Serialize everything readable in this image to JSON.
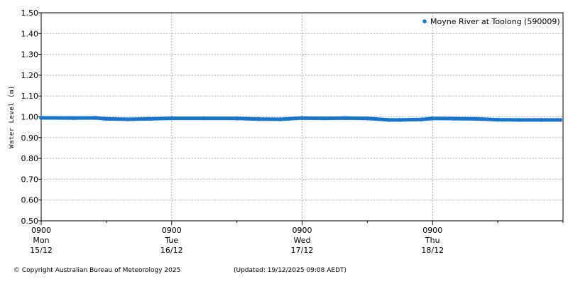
{
  "chart_data": {
    "type": "scatter",
    "title": "",
    "ylabel": "Water Level (m)",
    "xlabel": "",
    "ylim": [
      0.5,
      1.5
    ],
    "yticks": [
      0.5,
      0.6,
      0.7,
      0.8,
      0.9,
      1.0,
      1.1,
      1.2,
      1.3,
      1.4,
      1.5
    ],
    "ytick_labels": [
      "0.50",
      "0.60",
      "0.70",
      "0.80",
      "0.90",
      "1.00",
      "1.10",
      "1.20",
      "1.30",
      "1.40",
      "1.50"
    ],
    "x_range_hours": [
      0,
      96
    ],
    "x_major_ticks": [
      {
        "hour": 0,
        "time": "0900",
        "day": "Mon",
        "date": "15/12"
      },
      {
        "hour": 24,
        "time": "0900",
        "day": "Tue",
        "date": "16/12"
      },
      {
        "hour": 48,
        "time": "0900",
        "day": "Wed",
        "date": "17/12"
      },
      {
        "hour": 72,
        "time": "0900",
        "day": "Thu",
        "date": "18/12"
      }
    ],
    "x_minor_tick_step_hours": 12,
    "grid": true,
    "legend_position": "top-right",
    "series": [
      {
        "name": "Moyne River at Toolong (590009)",
        "color": "#1874CD",
        "x_hours": [
          0,
          6,
          10,
          12,
          16,
          20,
          24,
          30,
          36,
          40,
          44,
          48,
          52,
          56,
          60,
          64,
          66,
          70,
          72,
          76,
          80,
          84,
          88,
          92,
          95.5
        ],
        "y": [
          0.995,
          0.994,
          0.995,
          0.99,
          0.988,
          0.99,
          0.993,
          0.993,
          0.992,
          0.989,
          0.988,
          0.994,
          0.993,
          0.994,
          0.992,
          0.985,
          0.985,
          0.987,
          0.992,
          0.991,
          0.99,
          0.986,
          0.985,
          0.985,
          0.985
        ]
      }
    ]
  },
  "footer": {
    "copyright": "© Copyright Australian Bureau of Meteorology 2025",
    "updated": "(Updated: 19/12/2025 09:08 AEDT)"
  }
}
